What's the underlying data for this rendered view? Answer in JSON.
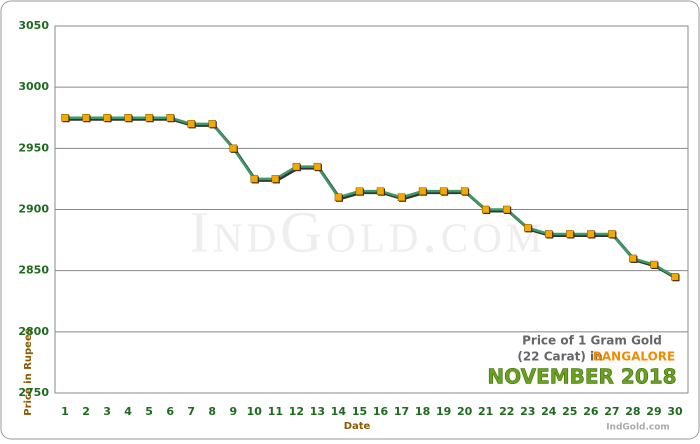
{
  "chart_data": {
    "type": "line",
    "xlabel": "Date",
    "ylabel": "Price in Rupees",
    "categories": [
      "1",
      "2",
      "3",
      "4",
      "5",
      "6",
      "7",
      "8",
      "9",
      "10",
      "11",
      "12",
      "13",
      "14",
      "15",
      "16",
      "17",
      "18",
      "19",
      "20",
      "21",
      "22",
      "23",
      "24",
      "25",
      "26",
      "27",
      "28",
      "29",
      "30"
    ],
    "values": [
      2975,
      2975,
      2975,
      2975,
      2975,
      2975,
      2970,
      2970,
      2950,
      2925,
      2925,
      2935,
      2935,
      2910,
      2915,
      2915,
      2910,
      2915,
      2915,
      2915,
      2900,
      2900,
      2885,
      2880,
      2880,
      2880,
      2880,
      2860,
      2855,
      2845
    ],
    "color": "#3c9a64",
    "marker_color": "#f5a800",
    "ylim": [
      2750,
      3050
    ],
    "yticks": [
      2750,
      2800,
      2850,
      2900,
      2950,
      3000,
      3050
    ],
    "grid": true,
    "annotations": {
      "caption": "Price of 1 Gram Gold",
      "carat": "(22 Carat) in",
      "city": "BANGALORE",
      "period": "NOVEMBER 2018",
      "source": "IndGold.com",
      "watermark": "IndGold.com"
    }
  }
}
